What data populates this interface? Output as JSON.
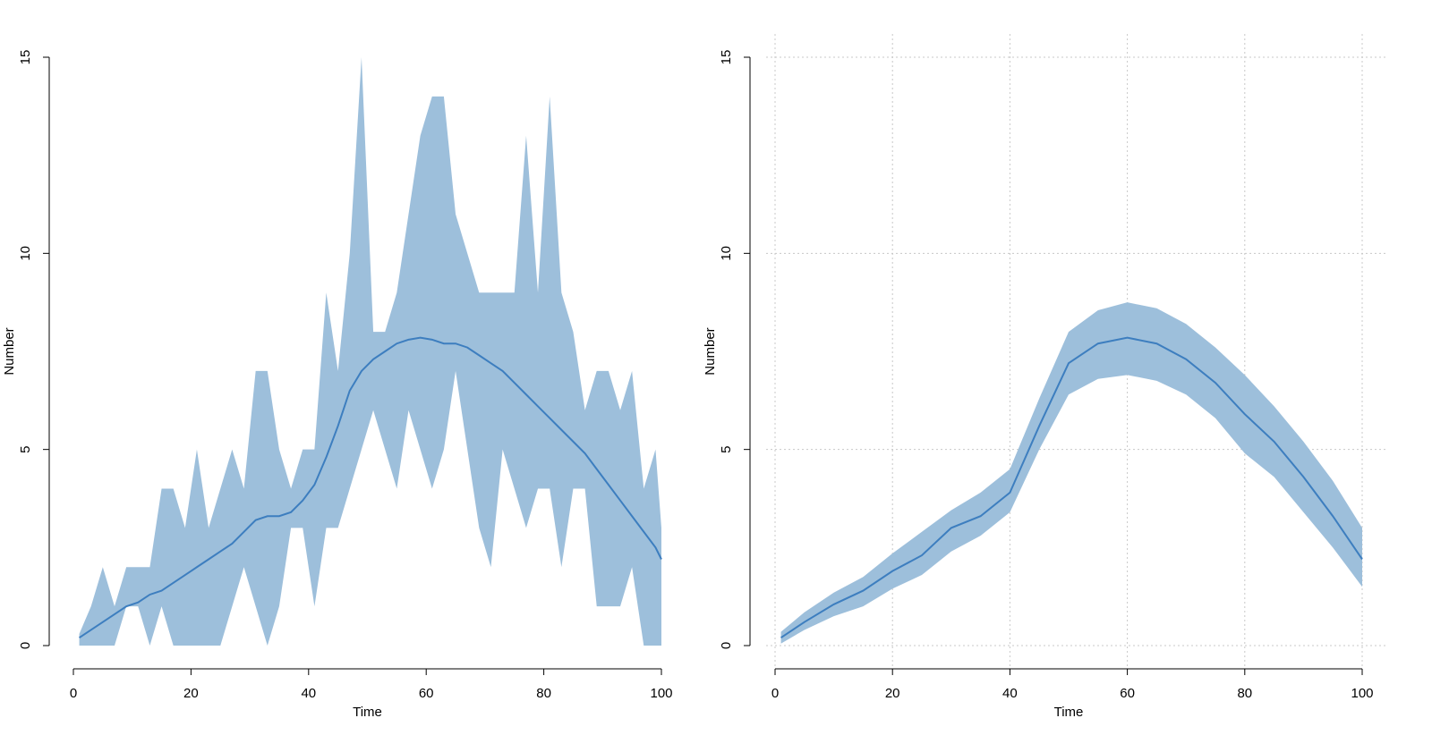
{
  "chart_data": [
    {
      "type": "band",
      "xlabel": "Time",
      "ylabel": "Number",
      "xlim": [
        0,
        100
      ],
      "ylim": [
        0,
        15
      ],
      "xticks": [
        0,
        20,
        40,
        60,
        80,
        100
      ],
      "yticks": [
        0,
        5,
        10,
        15
      ],
      "grid": false,
      "band_color": "#9dbfdb",
      "line_color": "#3d7ebf",
      "x": [
        1,
        3,
        5,
        7,
        9,
        11,
        13,
        15,
        17,
        19,
        21,
        23,
        25,
        27,
        29,
        31,
        33,
        35,
        37,
        39,
        41,
        43,
        45,
        47,
        49,
        51,
        53,
        55,
        57,
        59,
        61,
        63,
        65,
        67,
        69,
        71,
        73,
        75,
        77,
        79,
        81,
        83,
        85,
        87,
        89,
        91,
        93,
        95,
        97,
        99,
        100
      ],
      "lower": [
        0,
        0,
        0,
        0,
        1,
        1,
        0,
        1,
        0,
        0,
        0,
        0,
        0,
        1,
        2,
        1,
        0,
        1,
        3,
        3,
        1,
        3,
        3,
        4,
        5,
        6,
        5,
        4,
        6,
        5,
        4,
        5,
        7,
        5,
        3,
        2,
        5,
        4,
        3,
        4,
        4,
        2,
        4,
        4,
        1,
        1,
        1,
        2,
        0,
        0,
        0
      ],
      "upper": [
        0.3,
        1,
        2,
        1,
        2,
        2,
        2,
        4,
        4,
        3,
        5,
        3,
        4,
        5,
        4,
        7,
        7,
        5,
        4,
        5,
        5,
        9,
        7,
        10,
        15,
        8,
        8,
        9,
        11,
        13,
        14,
        14,
        11,
        10,
        9,
        9,
        9,
        9,
        13,
        9,
        14,
        9,
        8,
        6,
        7,
        7,
        6,
        7,
        4,
        5,
        3
      ],
      "values": [
        0.2,
        0.4,
        0.6,
        0.8,
        1.0,
        1.1,
        1.3,
        1.4,
        1.6,
        1.8,
        2.0,
        2.2,
        2.4,
        2.6,
        2.9,
        3.2,
        3.3,
        3.3,
        3.4,
        3.7,
        4.1,
        4.8,
        5.6,
        6.5,
        7.0,
        7.3,
        7.5,
        7.7,
        7.8,
        7.85,
        7.8,
        7.7,
        7.7,
        7.6,
        7.4,
        7.2,
        7.0,
        6.7,
        6.4,
        6.1,
        5.8,
        5.5,
        5.2,
        4.9,
        4.5,
        4.1,
        3.7,
        3.3,
        2.9,
        2.5,
        2.2
      ]
    },
    {
      "type": "band",
      "xlabel": "Time",
      "ylabel": "Number",
      "xlim": [
        0,
        100
      ],
      "ylim": [
        0,
        15
      ],
      "xticks": [
        0,
        20,
        40,
        60,
        80,
        100
      ],
      "yticks": [
        0,
        5,
        10,
        15
      ],
      "grid": true,
      "band_color": "#9dbfdb",
      "line_color": "#3d7ebf",
      "x": [
        1,
        5,
        10,
        15,
        20,
        25,
        30,
        35,
        40,
        45,
        50,
        55,
        60,
        65,
        70,
        75,
        80,
        85,
        90,
        95,
        100
      ],
      "lower": [
        0.05,
        0.4,
        0.75,
        1.0,
        1.45,
        1.8,
        2.4,
        2.8,
        3.4,
        5.0,
        6.4,
        6.8,
        6.9,
        6.75,
        6.4,
        5.8,
        4.9,
        4.3,
        3.4,
        2.5,
        1.5
      ],
      "upper": [
        0.35,
        0.85,
        1.35,
        1.75,
        2.35,
        2.9,
        3.45,
        3.9,
        4.5,
        6.3,
        8.0,
        8.55,
        8.75,
        8.6,
        8.2,
        7.6,
        6.9,
        6.1,
        5.2,
        4.2,
        3.0
      ],
      "values": [
        0.2,
        0.6,
        1.05,
        1.4,
        1.9,
        2.3,
        3.0,
        3.3,
        3.9,
        5.6,
        7.2,
        7.7,
        7.85,
        7.7,
        7.3,
        6.7,
        5.9,
        5.2,
        4.3,
        3.3,
        2.2
      ]
    }
  ]
}
